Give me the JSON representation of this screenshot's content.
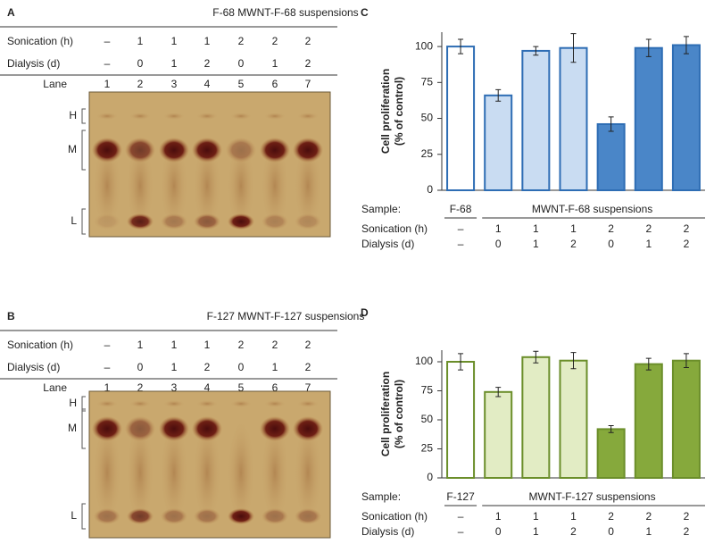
{
  "gels": [
    {
      "label": "A",
      "title": "F-68 MWNT-F-68 suspensions",
      "rows": [
        {
          "label": "Sonication (h)",
          "values": [
            "–",
            "1",
            "1",
            "1",
            "2",
            "2",
            "2"
          ]
        },
        {
          "label": "Dialysis (d)",
          "values": [
            "–",
            "0",
            "1",
            "2",
            "0",
            "1",
            "2"
          ]
        }
      ],
      "lane_label": "Lane",
      "lanes": [
        "1",
        "2",
        "3",
        "4",
        "5",
        "6",
        "7"
      ],
      "bands": [
        "H",
        "M",
        "L"
      ]
    },
    {
      "label": "B",
      "title": "F-127 MWNT-F-127 suspensions",
      "rows": [
        {
          "label": "Sonication (h)",
          "values": [
            "–",
            "1",
            "1",
            "1",
            "2",
            "2",
            "2"
          ]
        },
        {
          "label": "Dialysis (d)",
          "values": [
            "–",
            "0",
            "1",
            "2",
            "0",
            "1",
            "2"
          ]
        }
      ],
      "lane_label": "Lane",
      "lanes": [
        "1",
        "2",
        "3",
        "4",
        "5",
        "6",
        "7"
      ],
      "bands": [
        "H",
        "M",
        "L"
      ]
    }
  ],
  "chart_data": [
    {
      "type": "bar",
      "label": "C",
      "ylabel": [
        "Cell proliferation",
        "(% of control)"
      ],
      "values": [
        100,
        66,
        97,
        99,
        46,
        99,
        101
      ],
      "errors": [
        5,
        4,
        3,
        10,
        5,
        6,
        6
      ],
      "stroke": "#2e6db4",
      "fills": [
        "#ffffff",
        "#c9dcf2",
        "#c9dcf2",
        "#c9dcf2",
        "#4a86c8",
        "#4a86c8",
        "#4a86c8"
      ],
      "ylim": [
        0,
        110
      ],
      "yticks": [
        0,
        25,
        50,
        75,
        100
      ],
      "table": {
        "sample_label": "Sample:",
        "samples": [
          "F-68",
          "MWNT-F-68 suspensions"
        ],
        "rows": [
          {
            "label": "Sonication (h)",
            "values": [
              "–",
              "1",
              "1",
              "1",
              "2",
              "2",
              "2"
            ]
          },
          {
            "label": "Dialysis (d)",
            "values": [
              "–",
              "0",
              "1",
              "2",
              "0",
              "1",
              "2"
            ]
          }
        ]
      }
    },
    {
      "type": "bar",
      "label": "D",
      "ylabel": [
        "Cell proliferation",
        "(% of control)"
      ],
      "values": [
        100,
        74,
        104,
        101,
        42,
        98,
        101
      ],
      "errors": [
        7,
        4,
        5,
        7,
        3,
        5,
        6
      ],
      "stroke": "#6b8e2a",
      "fills": [
        "#ffffff",
        "#e2ecc4",
        "#e2ecc4",
        "#e2ecc4",
        "#86a93c",
        "#86a93c",
        "#86a93c"
      ],
      "ylim": [
        0,
        110
      ],
      "yticks": [
        0,
        25,
        50,
        75,
        100
      ],
      "table": {
        "sample_label": "Sample:",
        "samples": [
          "F-127",
          "MWNT-F-127 suspensions"
        ],
        "rows": [
          {
            "label": "Sonication (h)",
            "values": [
              "–",
              "1",
              "1",
              "1",
              "2",
              "2",
              "2"
            ]
          },
          {
            "label": "Dialysis (d)",
            "values": [
              "–",
              "0",
              "1",
              "2",
              "0",
              "1",
              "2"
            ]
          }
        ]
      }
    }
  ]
}
